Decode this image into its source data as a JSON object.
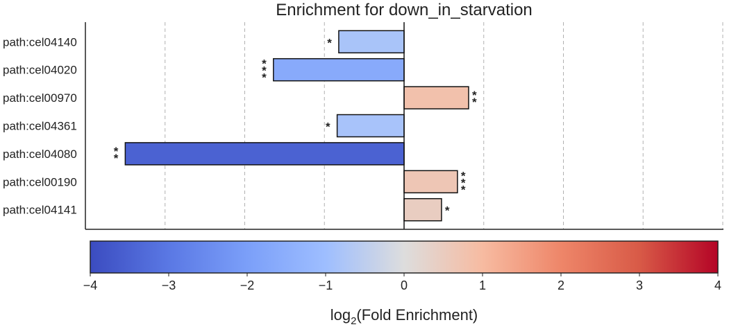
{
  "chart_data": {
    "type": "bar",
    "orientation": "horizontal",
    "title": "Enrichment for down_in_starvation",
    "categories": [
      "path:cel04140",
      "path:cel04020",
      "path:cel00970",
      "path:cel04361",
      "path:cel04080",
      "path:cel00190",
      "path:cel04141"
    ],
    "values": [
      -0.82,
      -1.64,
      0.81,
      -0.84,
      -3.5,
      0.67,
      0.47
    ],
    "significance": [
      "*",
      "***",
      "**",
      "*",
      "**",
      "***",
      "*"
    ],
    "xlim": [
      -4,
      4
    ],
    "grid": "vertical dashed",
    "colorbar": {
      "colormap": "coolwarm",
      "range": [
        -4,
        4
      ],
      "ticks": [
        "−4",
        "−3",
        "−2",
        "−1",
        "0",
        "1",
        "2",
        "3",
        "4"
      ],
      "label_main": "log",
      "label_sub": "2",
      "label_rest": "(Fold Enrichment)"
    }
  }
}
